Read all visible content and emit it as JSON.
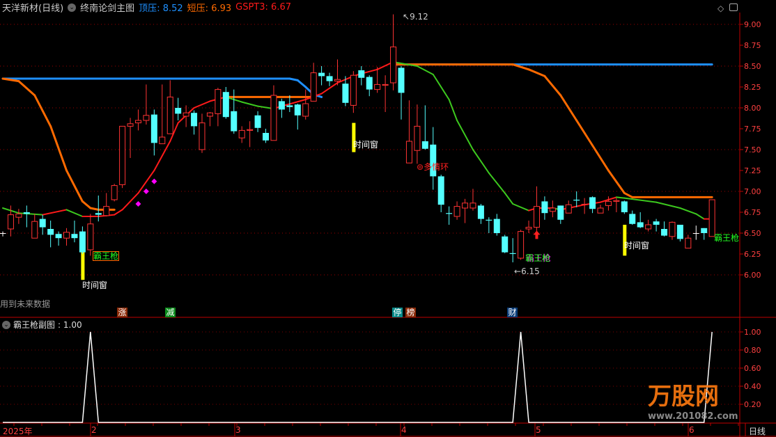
{
  "header": {
    "stock": "天洋新材(日线)",
    "indicator": "终南论剑主图",
    "legend": [
      {
        "label": "顶压",
        "value": "8.52",
        "color": "#1e90ff"
      },
      {
        "label": "短压",
        "value": "6.93",
        "color": "#ff6a00"
      },
      {
        "label": "GSPT3",
        "value": "6.67",
        "color": "#ff1a1a"
      }
    ]
  },
  "window_icons": [
    "diamond-icon",
    "window-toggle-icon"
  ],
  "future_data_note": "用到未来数据",
  "sub": {
    "title": "霸王枪副图",
    "value": ": 1.00"
  },
  "bottom_tags": [
    {
      "text": "涨",
      "color": "#8b2a08"
    },
    {
      "text": "减",
      "color": "#0a8a1a"
    },
    {
      "text": "停",
      "color": "#0a8a8a"
    },
    {
      "text": "榜",
      "color": "#8b2a08"
    },
    {
      "text": "财",
      "color": "#0a3c78"
    }
  ],
  "annotations": {
    "high_label": "9.12",
    "low_label": "6.15",
    "time_window": "时间窗",
    "bawangqiang": "霸王枪",
    "duoqinghuan": "多情环"
  },
  "x_axis": {
    "year": "2025年",
    "months": [
      "2",
      "3",
      "4",
      "5",
      "6"
    ],
    "period": "日线"
  },
  "watermark": {
    "brand": "万股网",
    "site": "www.201082.com"
  },
  "colors": {
    "up": "#ff3333",
    "down": "#54ffff",
    "grid": "#c00000",
    "time_window": "#ffff00",
    "signal": "#ff00ff"
  },
  "chart_data": [
    {
      "type": "candlestick",
      "ylim": [
        5.8,
        9.1
      ],
      "yticks": [
        "9.00",
        "8.75",
        "8.50",
        "8.25",
        "8.00",
        "7.75",
        "7.50",
        "7.25",
        "7.00",
        "6.75",
        "6.50",
        "6.25",
        "6.00"
      ],
      "grid": "dotted every 0.50",
      "candles_ohlc": [
        [
          6.5,
          6.52,
          6.46,
          6.5
        ],
        [
          6.55,
          6.83,
          6.46,
          6.72
        ],
        [
          6.69,
          6.79,
          6.61,
          6.73
        ],
        [
          6.75,
          6.83,
          6.57,
          6.73
        ],
        [
          6.44,
          6.73,
          6.44,
          6.64
        ],
        [
          6.67,
          6.72,
          6.48,
          6.57
        ],
        [
          6.55,
          6.65,
          6.33,
          6.48
        ],
        [
          6.49,
          6.52,
          6.35,
          6.44
        ],
        [
          6.44,
          6.56,
          6.35,
          6.51
        ],
        [
          6.49,
          6.65,
          6.39,
          6.44
        ],
        [
          6.52,
          6.58,
          6.25,
          6.27
        ],
        [
          6.3,
          6.73,
          6.23,
          6.61
        ],
        [
          6.74,
          6.95,
          6.64,
          6.72
        ],
        [
          6.71,
          6.98,
          6.7,
          6.82
        ],
        [
          6.9,
          7.09,
          6.88,
          7.07
        ],
        [
          7.08,
          7.78,
          7.04,
          7.78
        ],
        [
          7.78,
          7.88,
          7.4,
          7.81
        ],
        [
          7.82,
          7.98,
          7.73,
          7.85
        ],
        [
          7.85,
          8.28,
          7.8,
          7.91
        ],
        [
          7.92,
          7.98,
          7.43,
          7.58
        ],
        [
          7.57,
          8.28,
          7.57,
          7.65
        ],
        [
          7.69,
          8.33,
          7.69,
          8.13
        ],
        [
          8.0,
          8.12,
          7.85,
          7.93
        ],
        [
          7.9,
          8.03,
          7.77,
          7.94
        ],
        [
          7.94,
          7.97,
          7.68,
          7.78
        ],
        [
          7.5,
          7.93,
          7.46,
          7.82
        ],
        [
          7.9,
          7.95,
          7.78,
          7.94
        ],
        [
          7.93,
          8.24,
          7.78,
          8.22
        ],
        [
          8.19,
          8.25,
          7.87,
          7.89
        ],
        [
          7.96,
          8.22,
          7.69,
          7.72
        ],
        [
          7.64,
          7.78,
          7.58,
          7.73
        ],
        [
          7.73,
          7.84,
          7.53,
          7.74
        ],
        [
          7.91,
          7.96,
          7.71,
          7.76
        ],
        [
          7.7,
          7.75,
          7.58,
          7.61
        ],
        [
          7.61,
          8.27,
          7.61,
          8.15
        ],
        [
          8.08,
          8.11,
          7.88,
          7.98
        ],
        [
          8.03,
          8.15,
          7.95,
          8.01
        ],
        [
          8.04,
          8.05,
          7.74,
          7.91
        ],
        [
          7.9,
          8.22,
          7.86,
          8.05
        ],
        [
          8.08,
          8.54,
          8.08,
          8.42
        ],
        [
          8.42,
          8.5,
          8.27,
          8.38
        ],
        [
          8.38,
          8.42,
          8.26,
          8.32
        ],
        [
          8.32,
          8.58,
          8.27,
          8.34
        ],
        [
          8.29,
          8.38,
          8.02,
          8.06
        ],
        [
          8.03,
          8.44,
          7.94,
          8.39
        ],
        [
          8.45,
          8.5,
          8.27,
          8.36
        ],
        [
          8.37,
          8.39,
          8.14,
          8.22
        ],
        [
          8.22,
          8.49,
          8.18,
          8.28
        ],
        [
          8.27,
          8.39,
          7.95,
          8.28
        ],
        [
          8.3,
          9.12,
          8.21,
          8.73
        ],
        [
          8.48,
          8.5,
          7.86,
          8.18
        ],
        [
          7.34,
          8.09,
          7.34,
          7.6
        ],
        [
          7.49,
          8.04,
          7.33,
          7.78
        ],
        [
          7.6,
          8.03,
          7.5,
          7.51
        ],
        [
          7.56,
          7.77,
          7.02,
          7.18
        ],
        [
          7.18,
          7.2,
          6.75,
          6.84
        ],
        [
          6.74,
          6.82,
          6.6,
          6.73
        ],
        [
          6.7,
          6.88,
          6.66,
          6.82
        ],
        [
          6.8,
          6.91,
          6.62,
          6.86
        ],
        [
          6.8,
          7.03,
          6.77,
          6.86
        ],
        [
          6.83,
          6.85,
          6.61,
          6.67
        ],
        [
          6.66,
          6.69,
          6.5,
          6.65
        ],
        [
          6.67,
          6.73,
          6.47,
          6.5
        ],
        [
          6.46,
          6.48,
          6.26,
          6.27
        ],
        [
          6.26,
          6.44,
          6.15,
          6.25
        ],
        [
          6.2,
          6.54,
          6.18,
          6.52
        ],
        [
          6.55,
          6.65,
          6.5,
          6.57
        ],
        [
          6.57,
          7.06,
          6.52,
          6.82
        ],
        [
          6.88,
          6.94,
          6.66,
          6.74
        ],
        [
          6.76,
          6.89,
          6.69,
          6.8
        ],
        [
          6.83,
          6.83,
          6.61,
          6.66
        ],
        [
          6.74,
          6.89,
          6.74,
          6.84
        ],
        [
          6.9,
          7.0,
          6.81,
          6.89
        ],
        [
          6.85,
          6.92,
          6.73,
          6.85
        ],
        [
          6.93,
          6.94,
          6.74,
          6.79
        ],
        [
          6.74,
          6.84,
          6.74,
          6.8
        ],
        [
          6.83,
          6.94,
          6.77,
          6.88
        ],
        [
          6.88,
          6.92,
          6.75,
          6.89
        ],
        [
          6.88,
          6.89,
          6.73,
          6.75
        ],
        [
          6.73,
          6.77,
          6.6,
          6.61
        ],
        [
          6.63,
          6.75,
          6.56,
          6.57
        ],
        [
          6.55,
          6.66,
          6.52,
          6.6
        ],
        [
          6.64,
          6.67,
          6.52,
          6.6
        ],
        [
          6.55,
          6.64,
          6.46,
          6.47
        ],
        [
          6.46,
          6.64,
          6.42,
          6.63
        ],
        [
          6.6,
          6.6,
          6.4,
          6.43
        ],
        [
          6.32,
          6.48,
          6.32,
          6.44
        ],
        [
          6.5,
          6.59,
          6.42,
          6.5
        ],
        [
          6.56,
          6.56,
          6.42,
          6.5
        ],
        [
          6.46,
          6.9,
          6.46,
          6.9
        ]
      ],
      "lines": [
        {
          "name": "顶压",
          "color": "#1e90ff",
          "segments": [
            [
              [
                0,
                8.35
              ],
              [
                36,
                8.35
              ],
              [
                37,
                8.33
              ],
              [
                38,
                8.25
              ],
              [
                39,
                8.16
              ],
              [
                40,
                8.13
              ]
            ],
            [
              [
                49,
                8.52
              ],
              [
                89,
                8.52
              ]
            ]
          ]
        },
        {
          "name": "短压",
          "color": "#ff6a00",
          "segments": [
            [
              [
                0,
                8.35
              ],
              [
                2,
                8.32
              ],
              [
                4,
                8.15
              ],
              [
                6,
                7.78
              ],
              [
                8,
                7.25
              ],
              [
                10,
                6.88
              ],
              [
                11,
                6.8
              ],
              [
                12,
                6.78
              ],
              [
                14,
                6.78
              ]
            ],
            [
              [
                28,
                8.13
              ],
              [
                39,
                8.13
              ]
            ],
            [
              [
                49,
                8.52
              ],
              [
                64,
                8.52
              ],
              [
                66,
                8.46
              ],
              [
                68,
                8.38
              ],
              [
                70,
                8.15
              ],
              [
                72,
                7.85
              ],
              [
                74,
                7.55
              ],
              [
                76,
                7.25
              ],
              [
                78,
                6.98
              ],
              [
                79,
                6.93
              ],
              [
                89,
                6.93
              ]
            ]
          ]
        },
        {
          "name": "GSPT3",
          "color_up": "#ff1a1a",
          "color_down": "#3cc81e",
          "segments": [
            [
              [
                0,
                6.8
              ],
              [
                2,
                6.74
              ],
              [
                5,
                6.72
              ],
              [
                7,
                6.76
              ],
              [
                8,
                6.78
              ],
              [
                10,
                6.7
              ],
              [
                12,
                6.7
              ],
              [
                14,
                6.72
              ],
              [
                15,
                6.78
              ],
              [
                17,
                6.98
              ],
              [
                19,
                7.25
              ],
              [
                21,
                7.6
              ],
              [
                22,
                7.82
              ],
              [
                24,
                8.0
              ],
              [
                26,
                8.08
              ],
              [
                28,
                8.13
              ],
              [
                30,
                8.07
              ],
              [
                32,
                8.02
              ],
              [
                34,
                7.99
              ],
              [
                35,
                8.02
              ],
              [
                38,
                8.1
              ],
              [
                40,
                8.17
              ],
              [
                42,
                8.3
              ],
              [
                44,
                8.38
              ],
              [
                45,
                8.41
              ],
              [
                47,
                8.46
              ],
              [
                49,
                8.55
              ],
              [
                52,
                8.5
              ],
              [
                54,
                8.4
              ],
              [
                56,
                8.1
              ],
              [
                57,
                7.85
              ],
              [
                59,
                7.5
              ],
              [
                61,
                7.22
              ],
              [
                63,
                6.98
              ],
              [
                64,
                6.85
              ],
              [
                66,
                6.77
              ],
              [
                67,
                6.8
              ],
              [
                69,
                6.8
              ],
              [
                70,
                6.78
              ],
              [
                71,
                6.8
              ],
              [
                73,
                6.84
              ],
              [
                75,
                6.87
              ],
              [
                76,
                6.9
              ],
              [
                77,
                6.93
              ],
              [
                78,
                6.92
              ],
              [
                82,
                6.87
              ],
              [
                85,
                6.8
              ],
              [
                87,
                6.73
              ],
              [
                88,
                6.67
              ],
              [
                89,
                6.67
              ]
            ]
          ]
        }
      ],
      "signals": {
        "time_window_bars": [
          [
            10,
            6.3,
            5.94
          ],
          [
            44,
            7.82,
            7.47
          ],
          [
            78,
            6.6,
            6.23
          ]
        ],
        "diamonds": [
          [
            17,
            6.85
          ],
          [
            18,
            7.0
          ],
          [
            19,
            7.12
          ]
        ],
        "up_arrow": [
          [
            67,
            6.48
          ]
        ],
        "high_marker": [
          49,
          9.12
        ],
        "low_marker": [
          64,
          6.15
        ]
      }
    },
    {
      "type": "line",
      "title": "霸王枪副图",
      "ylim": [
        0,
        1.1
      ],
      "yticks": [
        "1.00",
        "0.80",
        "0.60",
        "0.40",
        "0.20"
      ],
      "spikes_at": [
        11,
        65,
        89
      ],
      "values_note_latest": 1.0
    }
  ]
}
